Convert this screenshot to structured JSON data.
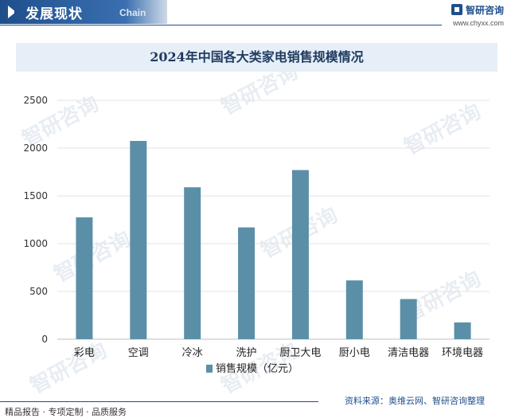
{
  "header": {
    "title": "发展现状",
    "subtitle": "Chain"
  },
  "logo": {
    "name": "智研咨询",
    "url": "www.chyxx.com"
  },
  "footer": {
    "left": "精品报告 · 专项定制 · 品质服务",
    "right": "资料来源：奥维云网、智研咨询整理"
  },
  "watermark": "智研咨询",
  "colors": {
    "bar": "#5b8fa8",
    "accent": "#1e4f8c",
    "title_band": "#e6eef7"
  },
  "chart_data": {
    "type": "bar",
    "title": "2024年中国各大类家电销售规模情况",
    "categories": [
      "彩电",
      "空调",
      "冷冰",
      "洗护",
      "厨卫大电",
      "厨小电",
      "清洁电器",
      "环境电器"
    ],
    "series": [
      {
        "name": "销售规模（亿元）",
        "values": [
          1275,
          2075,
          1590,
          1170,
          1770,
          615,
          420,
          175
        ]
      }
    ],
    "ylim": [
      0,
      2500
    ],
    "yticks": [
      0,
      500,
      1000,
      1500,
      2000,
      2500
    ],
    "grid": true,
    "legend": "bottom"
  }
}
